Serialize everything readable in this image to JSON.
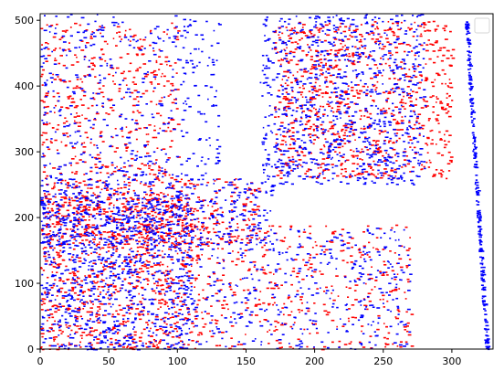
{
  "chart_data": {
    "type": "scatter",
    "title": "",
    "xlabel": "",
    "ylabel": "",
    "xlim": [
      0,
      330
    ],
    "ylim": [
      0,
      510
    ],
    "xticks": [
      0,
      50,
      100,
      150,
      200,
      250,
      300
    ],
    "yticks": [
      0,
      100,
      200,
      300,
      400,
      500
    ],
    "grid": false,
    "legend": "top-right (empty)",
    "colors": {
      "series_a": "#ff0000",
      "series_b": "#0000ff"
    },
    "series": [
      {
        "color": "#ff0000",
        "marker": "point",
        "clusters": [
          {
            "x": [
              0,
              110
            ],
            "y": [
              0,
              240
            ],
            "density": "high"
          },
          {
            "x": [
              0,
              160
            ],
            "y": [
              160,
              260
            ],
            "density": "medium"
          },
          {
            "x": [
              0,
              100
            ],
            "y": [
              260,
              500
            ],
            "density": "medium"
          },
          {
            "x": [
              170,
              300
            ],
            "y": [
              260,
              500
            ],
            "density": "high"
          },
          {
            "x": [
              110,
              270
            ],
            "y": [
              0,
              190
            ],
            "density": "medium"
          }
        ]
      },
      {
        "color": "#0000ff",
        "marker": "point",
        "clusters": [
          {
            "x": [
              0,
              110
            ],
            "y": [
              0,
              240
            ],
            "density": "high"
          },
          {
            "x": [
              0,
              170
            ],
            "y": [
              160,
              260
            ],
            "density": "medium"
          },
          {
            "x": [
              0,
              130
            ],
            "y": [
              260,
              510
            ],
            "density": "medium"
          },
          {
            "x": [
              160,
              280
            ],
            "y": [
              250,
              510
            ],
            "density": "high"
          },
          {
            "x": [
              100,
              270
            ],
            "y": [
              0,
              185
            ],
            "density": "medium"
          },
          {
            "x": [
              310,
              325
            ],
            "y": [
              0,
              500
            ],
            "density": "line"
          }
        ]
      }
    ]
  }
}
